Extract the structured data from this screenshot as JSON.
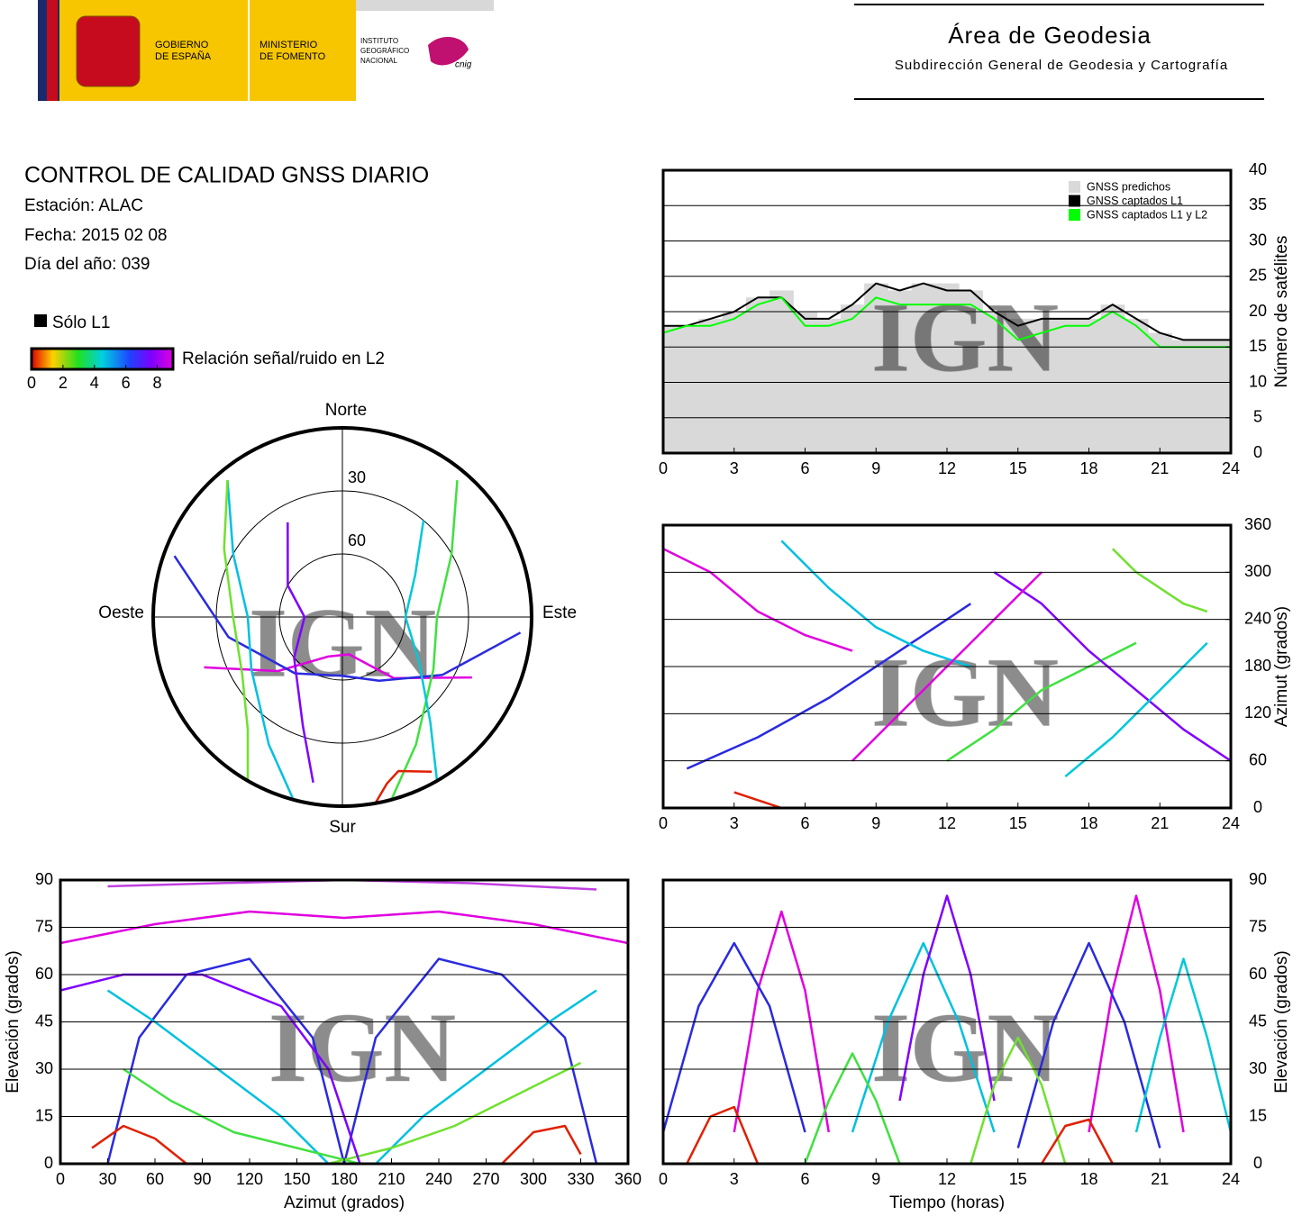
{
  "header": {
    "government": [
      "GOBIERNO",
      "DE ESPAÑA"
    ],
    "ministry": [
      "MINISTERIO",
      "DE FOMENTO"
    ],
    "institute": [
      "INSTITUTO",
      "GEOGRÁFICO",
      "NACIONAL"
    ],
    "institute_mark": "cnig",
    "area_title": "Área de Geodesia",
    "area_subtitle": "Subdirección General de Geodesia y Cartografía"
  },
  "info": {
    "title": "CONTROL DE CALIDAD GNSS DIARIO",
    "station": "Estación: ALAC",
    "date": "Fecha: 2015 02 08",
    "day_of_year": "Día del año: 039"
  },
  "legend": {
    "l1_only": "Sólo L1",
    "colorbar": {
      "label": "Relación señal/ruido en L2",
      "range": [
        0,
        9
      ],
      "ticks": [
        0,
        2,
        4,
        6,
        8
      ]
    }
  },
  "watermark": "IGN",
  "chart_data": [
    {
      "type": "line",
      "ylabel": "Número de satélites",
      "xlim": [
        0,
        24
      ],
      "ylim": [
        0,
        40
      ],
      "xticks": [
        0,
        3,
        6,
        9,
        12,
        15,
        18,
        21,
        24
      ],
      "yticks": [
        0,
        5,
        10,
        15,
        20,
        25,
        30,
        35,
        40
      ],
      "grid": true,
      "y_axis_side": "right",
      "legend": "upper right",
      "x": [
        0,
        1,
        2,
        3,
        4,
        5,
        6,
        7,
        8,
        9,
        10,
        11,
        12,
        13,
        14,
        15,
        16,
        17,
        18,
        19,
        20,
        21,
        22,
        23,
        24
      ],
      "series": [
        {
          "name": "GNSS predichos",
          "color": "#d9d9d9",
          "style": "area",
          "values": [
            18,
            18,
            19,
            20,
            22,
            23,
            20,
            19,
            21,
            24,
            23,
            24,
            24,
            23,
            20,
            19,
            19,
            19,
            19,
            21,
            19,
            17,
            16,
            16,
            16
          ]
        },
        {
          "name": "GNSS captados L1",
          "color": "#000000",
          "style": "line",
          "values": [
            18,
            18,
            19,
            20,
            22,
            22,
            19,
            19,
            21,
            24,
            23,
            24,
            23,
            23,
            20,
            18,
            19,
            19,
            19,
            21,
            19,
            17,
            16,
            16,
            16
          ]
        },
        {
          "name": "GNSS captados L1 y L2",
          "color": "#00ff00",
          "style": "line",
          "values": [
            17,
            18,
            18,
            19,
            21,
            22,
            18,
            18,
            19,
            22,
            21,
            21,
            21,
            21,
            19,
            16,
            17,
            18,
            18,
            20,
            18,
            15,
            15,
            15,
            15
          ]
        }
      ]
    },
    {
      "type": "skyplot",
      "directions": {
        "north": "Norte",
        "south": "Sur",
        "east": "Este",
        "west": "Oeste"
      },
      "rings": [
        30,
        60
      ],
      "tracks": [
        {
          "color": "#e000e0",
          "azimuth": [
            250,
            230,
            200,
            170,
            140,
            115
          ],
          "elevation": [
            20,
            50,
            70,
            72,
            52,
            22
          ]
        },
        {
          "color": "#2a2ae0",
          "azimuth": [
            290,
            260,
            220,
            180,
            150,
            120,
            95
          ],
          "elevation": [
            5,
            35,
            55,
            62,
            55,
            35,
            5
          ]
        },
        {
          "color": "#00c0e0",
          "azimuth": [
            320,
            300,
            270,
            240,
            210,
            195
          ],
          "elevation": [
            5,
            30,
            45,
            40,
            20,
            0
          ]
        },
        {
          "color": "#40e040",
          "azimuth": [
            40,
            60,
            90,
            120,
            150,
            165
          ],
          "elevation": [
            5,
            30,
            45,
            40,
            20,
            0
          ]
        },
        {
          "color": "#8000ff",
          "azimuth": [
            190,
            200,
            230,
            270,
            300,
            330
          ],
          "elevation": [
            10,
            35,
            60,
            72,
            60,
            38
          ]
        },
        {
          "color": "#00c8d8",
          "azimuth": [
            150,
            140,
            120,
            90,
            60,
            40
          ],
          "elevation": [
            0,
            25,
            48,
            60,
            50,
            30
          ]
        },
        {
          "color": "#70e030",
          "azimuth": [
            210,
            220,
            240,
            270,
            300,
            320
          ],
          "elevation": [
            0,
            20,
            35,
            38,
            25,
            5
          ]
        },
        {
          "color": "#e02000",
          "azimuth": [
            170,
            165,
            160,
            150
          ],
          "elevation": [
            0,
            8,
            12,
            5
          ]
        }
      ]
    },
    {
      "type": "line",
      "ylabel": "Azimut (grados)",
      "xlim": [
        0,
        24
      ],
      "ylim": [
        0,
        360
      ],
      "xticks": [
        0,
        3,
        6,
        9,
        12,
        15,
        18,
        21,
        24
      ],
      "yticks": [
        0,
        60,
        120,
        180,
        240,
        300,
        360
      ],
      "grid": true,
      "y_axis_side": "right",
      "series": [
        {
          "color": "#e000e0",
          "x": [
            0,
            2,
            4,
            6,
            8
          ],
          "values": [
            330,
            300,
            250,
            220,
            200
          ]
        },
        {
          "color": "#2a2ae0",
          "x": [
            1,
            4,
            7,
            10,
            13
          ],
          "values": [
            50,
            90,
            140,
            200,
            260
          ]
        },
        {
          "color": "#00c0e0",
          "x": [
            5,
            7,
            9,
            11,
            13
          ],
          "values": [
            340,
            280,
            230,
            200,
            180
          ]
        },
        {
          "color": "#40e040",
          "x": [
            12,
            14,
            16,
            18,
            20
          ],
          "values": [
            60,
            100,
            150,
            180,
            210
          ]
        },
        {
          "color": "#8000ff",
          "x": [
            14,
            16,
            18,
            20,
            22,
            24
          ],
          "values": [
            300,
            260,
            200,
            150,
            100,
            60
          ]
        },
        {
          "color": "#e02000",
          "x": [
            3,
            4,
            5
          ],
          "values": [
            20,
            10,
            0
          ]
        },
        {
          "color": "#00c8d8",
          "x": [
            17,
            19,
            21,
            23
          ],
          "values": [
            40,
            90,
            150,
            210
          ]
        },
        {
          "color": "#e000e0",
          "x": [
            8,
            10,
            12,
            14,
            16
          ],
          "values": [
            60,
            120,
            180,
            240,
            300
          ]
        },
        {
          "color": "#70e030",
          "x": [
            19,
            20,
            21,
            22,
            23
          ],
          "values": [
            330,
            300,
            280,
            260,
            250
          ]
        }
      ]
    },
    {
      "type": "line",
      "xlabel": "Azimut (grados)",
      "ylabel": "Elevación (grados)",
      "xlim": [
        0,
        360
      ],
      "ylim": [
        0,
        90
      ],
      "xticks": [
        0,
        30,
        60,
        90,
        120,
        150,
        180,
        210,
        240,
        270,
        300,
        330,
        360
      ],
      "yticks": [
        0,
        15,
        30,
        45,
        60,
        75,
        90
      ],
      "grid": true,
      "y_axis_side": "left",
      "series": [
        {
          "color": "#e000e0",
          "x": [
            0,
            60,
            120,
            180,
            240,
            300,
            360
          ],
          "values": [
            70,
            76,
            80,
            78,
            80,
            76,
            70
          ]
        },
        {
          "color": "#2a2ae0",
          "x": [
            30,
            50,
            80,
            120,
            160,
            180
          ],
          "values": [
            0,
            40,
            60,
            65,
            40,
            0
          ]
        },
        {
          "color": "#2a2ae0",
          "x": [
            180,
            200,
            240,
            280,
            320,
            340
          ],
          "values": [
            0,
            40,
            65,
            60,
            40,
            0
          ]
        },
        {
          "color": "#00c0e0",
          "x": [
            30,
            60,
            100,
            140,
            170
          ],
          "values": [
            55,
            45,
            30,
            15,
            0
          ]
        },
        {
          "color": "#00c0e0",
          "x": [
            200,
            230,
            270,
            310,
            340
          ],
          "values": [
            0,
            15,
            30,
            45,
            55
          ]
        },
        {
          "color": "#40e040",
          "x": [
            40,
            70,
            110,
            150,
            190
          ],
          "values": [
            30,
            20,
            10,
            5,
            0
          ]
        },
        {
          "color": "#70e030",
          "x": [
            170,
            210,
            250,
            290,
            330
          ],
          "values": [
            0,
            5,
            12,
            22,
            32
          ]
        },
        {
          "color": "#8000ff",
          "x": [
            0,
            40,
            90,
            140,
            170,
            190
          ],
          "values": [
            55,
            60,
            60,
            50,
            30,
            0
          ]
        },
        {
          "color": "#e02000",
          "x": [
            20,
            40,
            60,
            80
          ],
          "values": [
            5,
            12,
            8,
            0
          ]
        },
        {
          "color": "#e02000",
          "x": [
            280,
            300,
            320,
            330
          ],
          "values": [
            0,
            10,
            12,
            3
          ]
        },
        {
          "color": "#c040e0",
          "x": [
            30,
            100,
            180,
            260,
            340
          ],
          "values": [
            88,
            89,
            90,
            89,
            87
          ]
        }
      ]
    },
    {
      "type": "line",
      "xlabel": "Tiempo (horas)",
      "ylabel": "Elevación (grados)",
      "xlim": [
        0,
        24
      ],
      "ylim": [
        0,
        90
      ],
      "xticks": [
        0,
        3,
        6,
        9,
        12,
        15,
        18,
        21,
        24
      ],
      "yticks": [
        0,
        15,
        30,
        45,
        60,
        75,
        90
      ],
      "grid": true,
      "y_axis_side": "right",
      "series": [
        {
          "color": "#e000e0",
          "x": [
            3,
            4,
            5,
            6,
            7
          ],
          "values": [
            10,
            55,
            80,
            55,
            10
          ]
        },
        {
          "color": "#2a2ae0",
          "x": [
            0,
            1.5,
            3,
            4.5,
            6
          ],
          "values": [
            10,
            50,
            70,
            50,
            10
          ]
        },
        {
          "color": "#00c0e0",
          "x": [
            8,
            9.5,
            11,
            12.5,
            14
          ],
          "values": [
            10,
            45,
            70,
            45,
            10
          ]
        },
        {
          "color": "#40e040",
          "x": [
            6,
            7,
            8,
            9,
            10
          ],
          "values": [
            0,
            20,
            35,
            20,
            0
          ]
        },
        {
          "color": "#e02000",
          "x": [
            1,
            2,
            3,
            4
          ],
          "values": [
            0,
            15,
            18,
            0
          ]
        },
        {
          "color": "#8000ff",
          "x": [
            10,
            11,
            12,
            13,
            14
          ],
          "values": [
            20,
            60,
            85,
            60,
            20
          ]
        },
        {
          "color": "#e000e0",
          "x": [
            18,
            19,
            20,
            21,
            22
          ],
          "values": [
            10,
            55,
            85,
            55,
            10
          ]
        },
        {
          "color": "#2a2ae0",
          "x": [
            15,
            16.5,
            18,
            19.5,
            21
          ],
          "values": [
            5,
            45,
            70,
            45,
            5
          ]
        },
        {
          "color": "#00c8d8",
          "x": [
            20,
            21,
            22,
            23,
            24
          ],
          "values": [
            10,
            40,
            65,
            40,
            10
          ]
        },
        {
          "color": "#70e030",
          "x": [
            13,
            14,
            15,
            16,
            17
          ],
          "values": [
            0,
            25,
            40,
            25,
            0
          ]
        },
        {
          "color": "#e02000",
          "x": [
            16,
            17,
            18,
            19
          ],
          "values": [
            0,
            12,
            14,
            0
          ]
        }
      ]
    }
  ]
}
